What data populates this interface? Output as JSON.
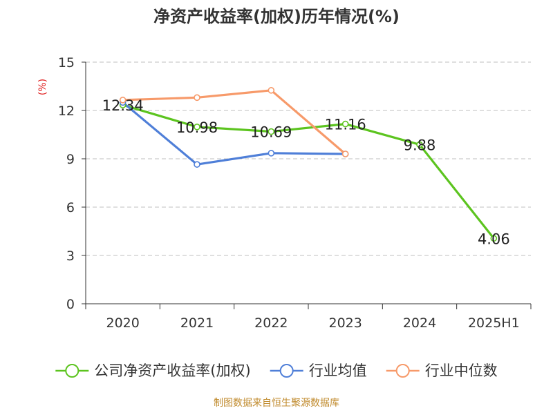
{
  "chart_data": {
    "type": "line",
    "title": "净资产收益率(加权)历年情况(%)",
    "ylabel": "(%)",
    "xlabel": "",
    "categories": [
      "2020",
      "2021",
      "2022",
      "2023",
      "2024",
      "2025H1"
    ],
    "ylim": [
      0,
      15
    ],
    "yticks": [
      0,
      3,
      6,
      9,
      12,
      15
    ],
    "grid": "horizontal-dashed",
    "legend_position": "bottom",
    "series": [
      {
        "name": "公司净资产收益率(加权)",
        "color": "#5cc41f",
        "values": [
          12.34,
          10.98,
          10.69,
          11.16,
          9.88,
          4.06
        ],
        "data_labels": [
          "12.34",
          "10.98",
          "10.69",
          "11.16",
          "9.88",
          "4.06"
        ]
      },
      {
        "name": "行业均值",
        "color": "#4f7fd8",
        "values": [
          12.5,
          8.65,
          9.35,
          9.3,
          null,
          null
        ]
      },
      {
        "name": "行业中位数",
        "color": "#f79a6a",
        "values": [
          12.65,
          12.8,
          13.25,
          9.3,
          null,
          null
        ]
      }
    ]
  },
  "footer": {
    "source": "制图数据来自恒生聚源数据库",
    "source_color": "#c08a2c"
  },
  "colors": {
    "title": "#333333",
    "axis": "#333333",
    "grid": "#bfbfbf",
    "ylabel": "#e02020"
  }
}
